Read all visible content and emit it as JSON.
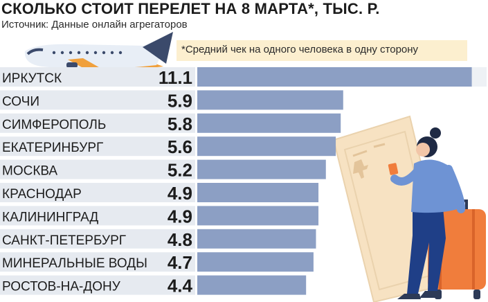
{
  "title": "СКОЛЬКО СТОИТ ПЕРЕЛЕТ НА 8 МАРТА*, ТЫС. Р.",
  "source": "Источник: Данные онлайн агрегаторов",
  "note": "*Средний чек на одного человека в одну сторону",
  "colors": {
    "bar": "#8c9fc4",
    "track": "#eef1f5",
    "row_band": "#e6eaf0",
    "text": "#1c1c1c",
    "note_bg": "#fcefcf"
  },
  "illustrations": [
    "airplane-icon",
    "woman-with-ticket-and-suitcase-illustration"
  ],
  "chart_data": {
    "type": "bar",
    "orientation": "horizontal",
    "title": "СКОЛЬКО СТОИТ ПЕРЕЛЕТ НА 8 МАРТА*, ТЫС. Р.",
    "categories": [
      "ИРКУТСК",
      "СОЧИ",
      "СИМФЕРОПОЛЬ",
      "ЕКАТЕРИНБУРГ",
      "МОСКВА",
      "КРАСНОДАР",
      "КАЛИНИНГРАД",
      "САНКТ-ПЕТЕРБУРГ",
      "МИНЕРАЛЬНЫЕ ВОДЫ",
      "РОСТОВ-НА-ДОНУ"
    ],
    "values": [
      11.1,
      5.9,
      5.8,
      5.6,
      5.2,
      4.9,
      4.9,
      4.8,
      4.7,
      4.4
    ],
    "value_labels": [
      "11.1",
      "5.9",
      "5.8",
      "5.6",
      "5.2",
      "4.9",
      "4.9",
      "4.8",
      "4.7",
      "4.4"
    ],
    "xlim": [
      0,
      11.7
    ],
    "grid": false,
    "legend": "none"
  }
}
